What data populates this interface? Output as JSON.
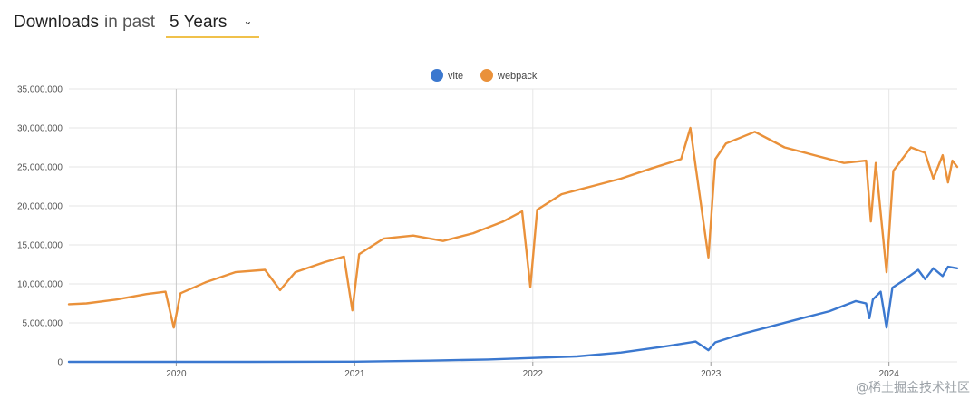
{
  "header": {
    "title": "Downloads",
    "subtitle": "in past",
    "period": "5 Years"
  },
  "watermark": "@稀土掘金技术社区",
  "colors": {
    "vite": "#3b78cf",
    "webpack": "#ea913a",
    "grid": "#e6e6e6",
    "year_line": "#cccccc"
  },
  "chart_data": {
    "type": "line",
    "ylim": [
      0,
      35000000
    ],
    "y_ticks": [
      0,
      5000000,
      10000000,
      15000000,
      20000000,
      25000000,
      30000000,
      35000000
    ],
    "y_tick_labels": [
      "0",
      "5,000,000",
      "10,000,000",
      "15,000,000",
      "20,000,000",
      "25,000,000",
      "30,000,000",
      "35,000,000"
    ],
    "xlim": [
      "2019-05-26",
      "2024-05-20"
    ],
    "x_ticks": [
      "2020-01-01",
      "2021-01-01",
      "2022-01-01",
      "2023-01-01",
      "2024-01-01"
    ],
    "x_tick_labels": [
      "2020",
      "2021",
      "2022",
      "2023",
      "2024"
    ],
    "legend_position": "top-center",
    "grid": true,
    "series": [
      {
        "name": "vite",
        "points": [
          [
            "2019-05-26",
            0
          ],
          [
            "2020-01-01",
            0
          ],
          [
            "2020-06-01",
            0
          ],
          [
            "2021-01-01",
            20000
          ],
          [
            "2021-06-01",
            150000
          ],
          [
            "2021-10-01",
            300000
          ],
          [
            "2022-01-01",
            500000
          ],
          [
            "2022-04-01",
            700000
          ],
          [
            "2022-07-01",
            1200000
          ],
          [
            "2022-10-01",
            2000000
          ],
          [
            "2022-12-01",
            2600000
          ],
          [
            "2022-12-27",
            1500000
          ],
          [
            "2023-01-10",
            2500000
          ],
          [
            "2023-03-01",
            3500000
          ],
          [
            "2023-05-01",
            4500000
          ],
          [
            "2023-07-01",
            5500000
          ],
          [
            "2023-09-01",
            6500000
          ],
          [
            "2023-10-25",
            7800000
          ],
          [
            "2023-11-15",
            7500000
          ],
          [
            "2023-11-22",
            5600000
          ],
          [
            "2023-11-29",
            8000000
          ],
          [
            "2023-12-15",
            9000000
          ],
          [
            "2023-12-27",
            4400000
          ],
          [
            "2024-01-08",
            9500000
          ],
          [
            "2024-02-01",
            10500000
          ],
          [
            "2024-03-01",
            11800000
          ],
          [
            "2024-03-15",
            10600000
          ],
          [
            "2024-04-01",
            12000000
          ],
          [
            "2024-04-20",
            11000000
          ],
          [
            "2024-05-01",
            12200000
          ],
          [
            "2024-05-20",
            12000000
          ]
        ]
      },
      {
        "name": "webpack",
        "points": [
          [
            "2019-05-26",
            7400000
          ],
          [
            "2019-07-01",
            7500000
          ],
          [
            "2019-09-01",
            8000000
          ],
          [
            "2019-11-01",
            8700000
          ],
          [
            "2019-12-10",
            9000000
          ],
          [
            "2019-12-27",
            4400000
          ],
          [
            "2020-01-10",
            8800000
          ],
          [
            "2020-03-01",
            10200000
          ],
          [
            "2020-05-01",
            11500000
          ],
          [
            "2020-07-01",
            11800000
          ],
          [
            "2020-08-01",
            9200000
          ],
          [
            "2020-09-01",
            11500000
          ],
          [
            "2020-11-01",
            12800000
          ],
          [
            "2020-12-10",
            13500000
          ],
          [
            "2020-12-27",
            6600000
          ],
          [
            "2021-01-10",
            13800000
          ],
          [
            "2021-03-01",
            15800000
          ],
          [
            "2021-05-01",
            16200000
          ],
          [
            "2021-07-01",
            15500000
          ],
          [
            "2021-09-01",
            16500000
          ],
          [
            "2021-11-01",
            18000000
          ],
          [
            "2021-12-10",
            19300000
          ],
          [
            "2021-12-27",
            9600000
          ],
          [
            "2022-01-10",
            19500000
          ],
          [
            "2022-03-01",
            21500000
          ],
          [
            "2022-05-01",
            22500000
          ],
          [
            "2022-07-01",
            23500000
          ],
          [
            "2022-09-01",
            24800000
          ],
          [
            "2022-11-01",
            26000000
          ],
          [
            "2022-11-20",
            30000000
          ],
          [
            "2022-12-01",
            25000000
          ],
          [
            "2022-12-27",
            13400000
          ],
          [
            "2023-01-10",
            26000000
          ],
          [
            "2023-02-01",
            28000000
          ],
          [
            "2023-04-01",
            29500000
          ],
          [
            "2023-06-01",
            27500000
          ],
          [
            "2023-08-01",
            26500000
          ],
          [
            "2023-10-01",
            25500000
          ],
          [
            "2023-11-15",
            25800000
          ],
          [
            "2023-11-25",
            18000000
          ],
          [
            "2023-12-05",
            25500000
          ],
          [
            "2023-12-27",
            11500000
          ],
          [
            "2024-01-10",
            24500000
          ],
          [
            "2024-02-15",
            27500000
          ],
          [
            "2024-03-15",
            26800000
          ],
          [
            "2024-04-01",
            23500000
          ],
          [
            "2024-04-20",
            26500000
          ],
          [
            "2024-05-01",
            23000000
          ],
          [
            "2024-05-10",
            25800000
          ],
          [
            "2024-05-20",
            25000000
          ]
        ]
      }
    ]
  }
}
